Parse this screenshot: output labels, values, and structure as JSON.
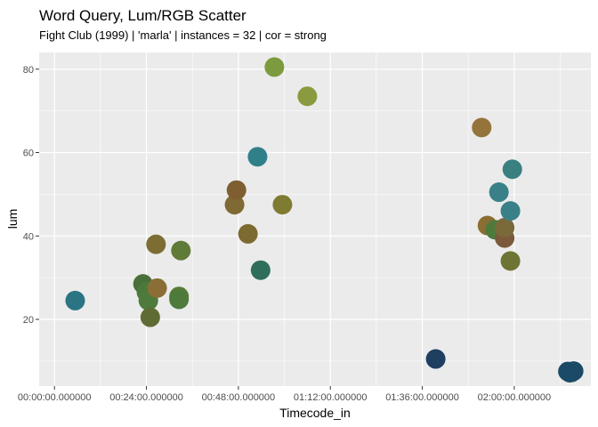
{
  "chart_data": {
    "type": "scatter",
    "title": "Word Query, Lum/RGB Scatter",
    "subtitle": "Fight Club (1999)  |  'marla'  |  instances = 32  |  cor = strong",
    "xlabel": "Timecode_in",
    "ylabel": "lum",
    "x_unit": "minutes",
    "xlim": [
      -4,
      140
    ],
    "ylim": [
      4,
      84
    ],
    "x_ticks": [
      {
        "value": 0,
        "label": "00:00:00.000000"
      },
      {
        "value": 24,
        "label": "00:24:00.000000"
      },
      {
        "value": 48,
        "label": "00:48:00.000000"
      },
      {
        "value": 72,
        "label": "01:12:00.000000"
      },
      {
        "value": 96,
        "label": "01:36:00.000000"
      },
      {
        "value": 120,
        "label": "02:00:00.000000"
      }
    ],
    "y_ticks": [
      {
        "value": 20,
        "label": "20"
      },
      {
        "value": 40,
        "label": "40"
      },
      {
        "value": 60,
        "label": "60"
      },
      {
        "value": 80,
        "label": "80"
      }
    ],
    "grid": true,
    "panel_color": "#ebebeb",
    "points": [
      {
        "x": 5.4,
        "y": 24.5,
        "color": "#2a7483"
      },
      {
        "x": 23.1,
        "y": 28.5,
        "color": "#49703a"
      },
      {
        "x": 24.0,
        "y": 26.5,
        "color": "#4a7a3a"
      },
      {
        "x": 24.5,
        "y": 24.5,
        "color": "#4e7a3c"
      },
      {
        "x": 25.0,
        "y": 20.5,
        "color": "#5e6c33"
      },
      {
        "x": 26.5,
        "y": 38.0,
        "color": "#7c6d32"
      },
      {
        "x": 26.8,
        "y": 27.5,
        "color": "#8a6e36"
      },
      {
        "x": 32.5,
        "y": 25.5,
        "color": "#597a38"
      },
      {
        "x": 32.5,
        "y": 24.8,
        "color": "#4e7a3a"
      },
      {
        "x": 33.0,
        "y": 36.5,
        "color": "#607a38"
      },
      {
        "x": 47.0,
        "y": 47.5,
        "color": "#7f6a34"
      },
      {
        "x": 47.5,
        "y": 51.0,
        "color": "#7f5f32"
      },
      {
        "x": 50.5,
        "y": 40.5,
        "color": "#7d6a30"
      },
      {
        "x": 53.0,
        "y": 59.0,
        "color": "#30808a"
      },
      {
        "x": 53.8,
        "y": 31.8,
        "color": "#2f6e5a"
      },
      {
        "x": 57.4,
        "y": 80.5,
        "color": "#7c9a3e"
      },
      {
        "x": 59.5,
        "y": 47.5,
        "color": "#7f7c32"
      },
      {
        "x": 66.0,
        "y": 73.5,
        "color": "#8a9a3e"
      },
      {
        "x": 99.5,
        "y": 10.5,
        "color": "#1e3f60"
      },
      {
        "x": 111.5,
        "y": 66.0,
        "color": "#94743a"
      },
      {
        "x": 113.0,
        "y": 42.5,
        "color": "#8a6e32"
      },
      {
        "x": 115.0,
        "y": 41.5,
        "color": "#4f7a3e"
      },
      {
        "x": 116.0,
        "y": 50.5,
        "color": "#3a8088"
      },
      {
        "x": 117.5,
        "y": 39.5,
        "color": "#7a5a3a"
      },
      {
        "x": 117.5,
        "y": 42.0,
        "color": "#7a6a3a"
      },
      {
        "x": 119.0,
        "y": 46.0,
        "color": "#3a8088"
      },
      {
        "x": 119.0,
        "y": 34.0,
        "color": "#6e7434"
      },
      {
        "x": 119.5,
        "y": 56.0,
        "color": "#3a8080"
      },
      {
        "x": 134.0,
        "y": 7.5,
        "color": "#1a4a66"
      },
      {
        "x": 134.5,
        "y": 7.2,
        "color": "#1a4a66"
      },
      {
        "x": 135.0,
        "y": 7.3,
        "color": "#1a4a66"
      },
      {
        "x": 135.5,
        "y": 7.6,
        "color": "#1a4a66"
      }
    ]
  }
}
